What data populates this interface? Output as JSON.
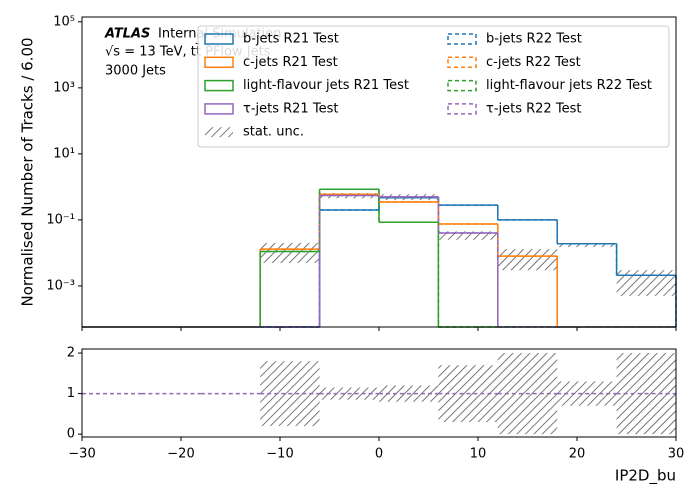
{
  "chart_data": {
    "type": "histogram",
    "ylabel": "Normalised Number of Tracks / 6.00",
    "xlabel": "IP2D_bu",
    "atlas_label": "ATLAS",
    "atlas_status": "Internal Simulation",
    "info_lines": [
      "√s = 13 TeV, tt̄ PFlow Jets",
      "3000 Jets"
    ],
    "log_y": true,
    "bins": [
      -30,
      -24,
      -18,
      -12,
      -6,
      0,
      6,
      12,
      18,
      24,
      30
    ],
    "xlim": [
      -30,
      30
    ],
    "xticks": [
      {
        "value": -30,
        "label": "−30"
      },
      {
        "value": -20,
        "label": "−20"
      },
      {
        "value": -10,
        "label": "−10"
      },
      0,
      10,
      20,
      30
    ],
    "ylim": [
      5.7e-05,
      140000
    ],
    "yticks": [
      {
        "value": 0.001,
        "label": "10⁻³"
      },
      {
        "value": 0.1,
        "label": "10⁻¹"
      },
      {
        "value": 10,
        "label": "10¹"
      },
      {
        "value": 1000,
        "label": "10³"
      },
      {
        "value": 100000,
        "label": "10⁵"
      }
    ],
    "series": [
      {
        "name": "b-jets R21 Test",
        "color": "#1f77b4",
        "dashed": false,
        "values": [
          0,
          0,
          0,
          0,
          0.2,
          0.47,
          0.28,
          0.1,
          0.019,
          0.0021
        ]
      },
      {
        "name": "c-jets R21 Test",
        "color": "#ff7f0e",
        "dashed": false,
        "values": [
          0,
          0,
          0,
          0.013,
          0.6,
          0.35,
          0.075,
          0.008,
          0,
          0
        ]
      },
      {
        "name": "light-flavour jets R21 Test",
        "color": "#2ca02c",
        "dashed": false,
        "values": [
          0,
          0,
          0,
          0.011,
          0.85,
          0.085,
          0,
          0,
          0,
          0
        ]
      },
      {
        "name": "τ-jets R21 Test",
        "color": "#9467bd",
        "dashed": false,
        "values": [
          0,
          0,
          0,
          0,
          0.55,
          0.5,
          0.04,
          0,
          0,
          0
        ]
      },
      {
        "name": "b-jets R22 Test",
        "color": "#1f77b4",
        "dashed": true,
        "values": [
          0,
          0,
          0,
          0,
          0.2,
          0.47,
          0.28,
          0.1,
          0.019,
          0.0021
        ]
      },
      {
        "name": "c-jets R22 Test",
        "color": "#ff7f0e",
        "dashed": true,
        "values": [
          0,
          0,
          0,
          0.013,
          0.6,
          0.35,
          0.075,
          0.008,
          0,
          0
        ]
      },
      {
        "name": "light-flavour jets R22 Test",
        "color": "#2ca02c",
        "dashed": true,
        "values": [
          0,
          0,
          0,
          0.011,
          0.85,
          0.085,
          0,
          0,
          0,
          0
        ]
      },
      {
        "name": "τ-jets R22 Test",
        "color": "#9467bd",
        "dashed": true,
        "values": [
          0,
          0,
          0,
          0,
          0.55,
          0.5,
          0.04,
          0,
          0,
          0
        ]
      }
    ],
    "stat_unc": {
      "name": "stat. unc.",
      "color": "#555555",
      "lower": [
        null,
        null,
        null,
        0.005,
        0.45,
        0.4,
        0.025,
        0.003,
        0.015,
        0.0005
      ],
      "upper": [
        null,
        null,
        null,
        0.02,
        0.65,
        0.6,
        0.045,
        0.013,
        0.02,
        0.003
      ]
    },
    "ratio": {
      "ylim": [
        -0.07,
        2.1
      ],
      "yticks": [
        0,
        1,
        2
      ],
      "color": "#9467bd",
      "values": [
        1,
        1,
        1,
        1,
        1,
        1,
        1,
        1,
        1,
        1
      ],
      "lower": [
        null,
        null,
        null,
        0.2,
        0.85,
        0.8,
        0.3,
        0,
        0.7,
        0
      ],
      "upper": [
        null,
        null,
        null,
        1.8,
        1.15,
        1.2,
        1.7,
        2.0,
        1.3,
        2.0
      ]
    }
  }
}
